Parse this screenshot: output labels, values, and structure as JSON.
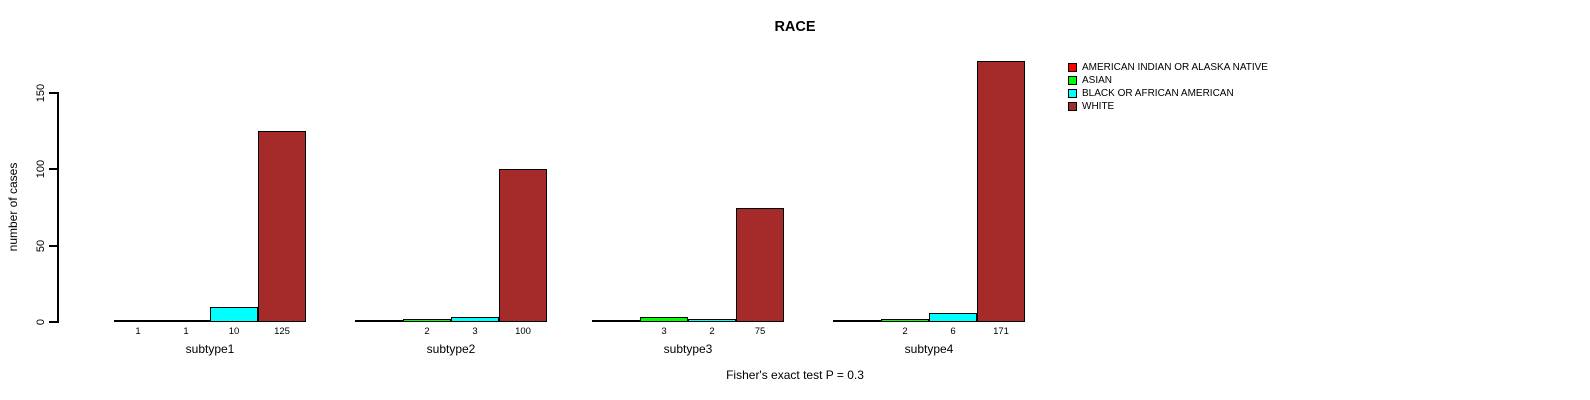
{
  "chart_data": {
    "type": "bar",
    "title": "RACE",
    "ylabel": "number of cases",
    "xlabel": "",
    "categories": [
      "subtype1",
      "subtype2",
      "subtype3",
      "subtype4"
    ],
    "series": [
      {
        "name": "AMERICAN INDIAN OR ALASKA NATIVE",
        "color": "#FF0000",
        "values": [
          1,
          0,
          0,
          0
        ]
      },
      {
        "name": "ASIAN",
        "color": "#00FF00",
        "values": [
          1,
          2,
          3,
          2
        ]
      },
      {
        "name": "BLACK OR AFRICAN AMERICAN",
        "color": "#00FFFF",
        "values": [
          10,
          3,
          2,
          6
        ]
      },
      {
        "name": "WHITE",
        "color": "#A52A2A",
        "values": [
          125,
          100,
          75,
          171
        ]
      }
    ],
    "y_ticks": [
      0,
      50,
      100,
      150
    ],
    "ylim": [
      0,
      175
    ],
    "grid": false,
    "legend_position": "right",
    "footnote": "Fisher's exact test P = 0.3"
  }
}
